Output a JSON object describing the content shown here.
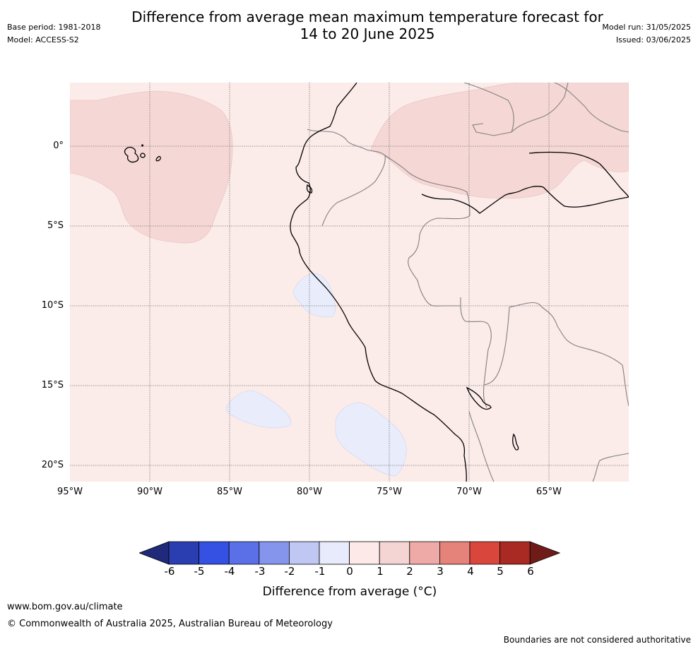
{
  "header": {
    "title_line1": "Difference from average mean maximum temperature forecast for",
    "title_line2": "14 to 20 June 2025",
    "base_period": "Base period: 1981-2018",
    "model": "Model: ACCESS-S2",
    "model_run": "Model run: 31/05/2025",
    "issued": "Issued: 03/06/2025"
  },
  "map": {
    "lat_labels": [
      "0°",
      "5°S",
      "10°S",
      "15°S",
      "20°S"
    ],
    "lon_labels": [
      "95°W",
      "90°W",
      "85°W",
      "80°W",
      "75°W",
      "70°W",
      "65°W"
    ],
    "colors": {
      "land_ocean_base": "#fbebe9",
      "anomaly_1_2": "#f5d7d5",
      "anomaly_neg1_0": "#e8ecfb",
      "coast": "#000000",
      "border": "#808080",
      "grid": "#7a7a7a"
    }
  },
  "colorbar": {
    "ticks": [
      "-6",
      "-5",
      "-4",
      "-3",
      "-2",
      "-1",
      "0",
      "1",
      "2",
      "3",
      "4",
      "5",
      "6"
    ],
    "colors": [
      "#1f2a7a",
      "#2a3eb1",
      "#3451e3",
      "#5b6fe6",
      "#8595ec",
      "#c0c7f3",
      "#e8ebfb",
      "#fce9e8",
      "#f5d5d3",
      "#eeaaa6",
      "#e5837b",
      "#d9473c",
      "#a92a22",
      "#6f1c18"
    ],
    "label": "Difference from average (°C)"
  },
  "footer": {
    "website": "www.bom.gov.au/climate",
    "copyright": "© Commonwealth of Australia 2025, Australian Bureau of Meteorology",
    "disclaimer": "Boundaries are not considered authoritative"
  }
}
